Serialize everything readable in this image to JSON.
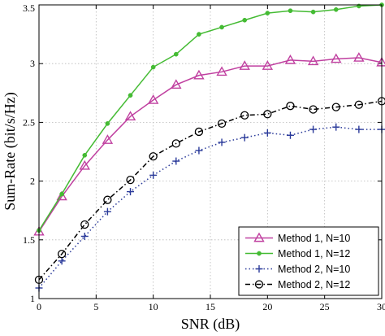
{
  "chart_data": {
    "type": "line",
    "xlabel": "SNR (dB)",
    "ylabel": "Sum-Rate (bit/s/Hz)",
    "xlim": [
      0,
      30
    ],
    "ylim": [
      1,
      3.5
    ],
    "xticks": [
      0,
      5,
      10,
      15,
      20,
      25,
      30
    ],
    "yticks": [
      1,
      1.5,
      2,
      2.5,
      3,
      3.5
    ],
    "xtick_labels": [
      "0",
      "5",
      "10",
      "15",
      "20",
      "25",
      "30"
    ],
    "ytick_labels": [
      "1",
      "1.5",
      "2",
      "2.5",
      "3",
      "3.5"
    ],
    "grid": true,
    "legend_position": "bottom-right",
    "x": [
      0,
      2,
      4,
      6,
      8,
      10,
      12,
      14,
      16,
      18,
      20,
      22,
      24,
      26,
      28,
      30
    ],
    "series": [
      {
        "name": "Method 1, N=10",
        "color": "#c040a0",
        "line": "solid",
        "marker": "triangle",
        "values": [
          1.57,
          1.87,
          2.13,
          2.35,
          2.55,
          2.69,
          2.82,
          2.9,
          2.93,
          2.98,
          2.98,
          3.03,
          3.02,
          3.04,
          3.05,
          3.01
        ]
      },
      {
        "name": "Method 1, N=12",
        "color": "#44bb33",
        "line": "solid",
        "marker": "dot",
        "values": [
          1.58,
          1.89,
          2.22,
          2.49,
          2.73,
          2.97,
          3.08,
          3.25,
          3.31,
          3.37,
          3.43,
          3.45,
          3.44,
          3.46,
          3.49,
          3.5
        ]
      },
      {
        "name": "Method 2, N=10",
        "color": "#2a3a9a",
        "line": "dotted",
        "marker": "plus",
        "values": [
          1.09,
          1.32,
          1.53,
          1.74,
          1.91,
          2.05,
          2.17,
          2.26,
          2.33,
          2.37,
          2.41,
          2.39,
          2.44,
          2.46,
          2.44,
          2.44
        ]
      },
      {
        "name": "Method 2, N=12",
        "color": "#000000",
        "line": "dashdot",
        "marker": "circle",
        "values": [
          1.16,
          1.38,
          1.63,
          1.84,
          2.01,
          2.21,
          2.32,
          2.42,
          2.49,
          2.56,
          2.57,
          2.64,
          2.61,
          2.63,
          2.65,
          2.68
        ]
      }
    ]
  }
}
